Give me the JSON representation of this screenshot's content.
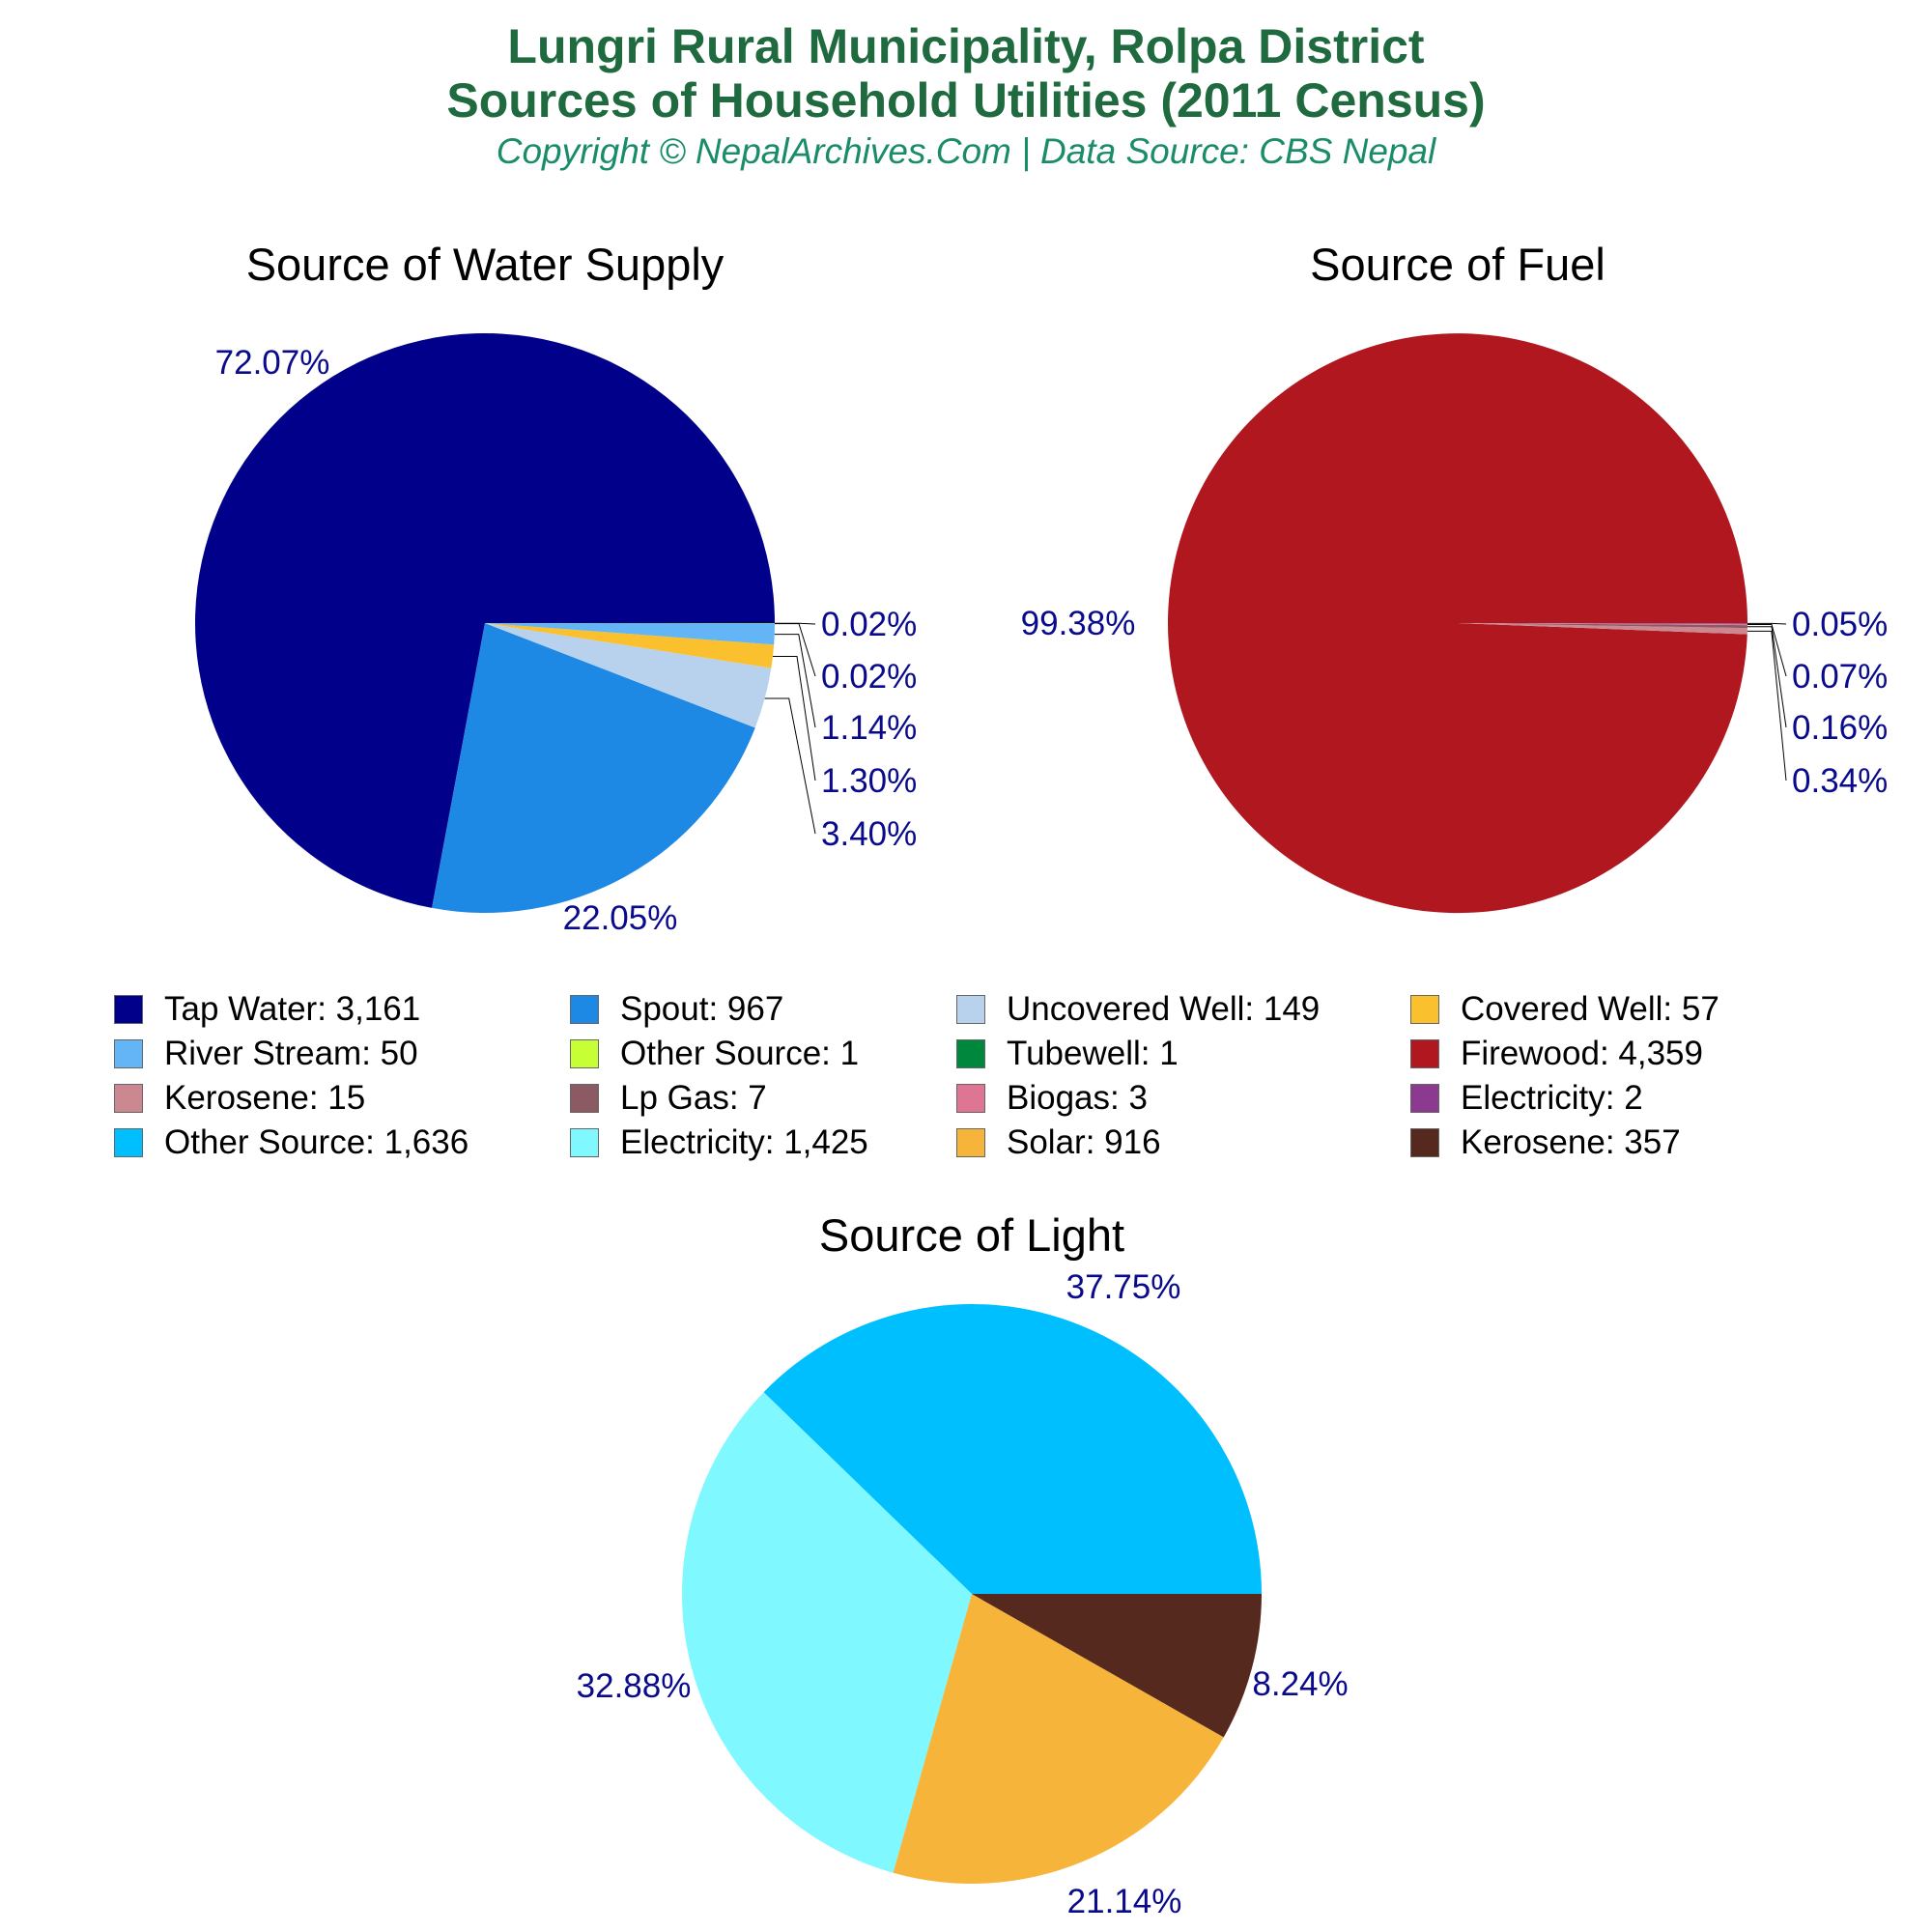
{
  "header": {
    "title_line1": "Lungri Rural Municipality, Rolpa District",
    "title_line2": "Sources of Household Utilities (2011 Census)",
    "subtitle": "Copyright © NepalArchives.Com | Data Source: CBS Nepal"
  },
  "chart_data": [
    {
      "type": "pie",
      "title": "Source of Water Supply",
      "slices": [
        {
          "label": "Tap Water",
          "value": 3161,
          "percent_label": "72.07%",
          "color": "#00008b"
        },
        {
          "label": "Spout",
          "value": 967,
          "percent_label": "22.05%",
          "color": "#1e88e5"
        },
        {
          "label": "Uncovered Well",
          "value": 149,
          "percent_label": "3.40%",
          "color": "#b8d2ee"
        },
        {
          "label": "Covered Well",
          "value": 57,
          "percent_label": "1.30%",
          "color": "#fbc02d"
        },
        {
          "label": "River Stream",
          "value": 50,
          "percent_label": "1.14%",
          "color": "#64b5f6"
        },
        {
          "label": "Other Source",
          "value": 1,
          "percent_label": "0.02%",
          "color": "#c6ff33"
        },
        {
          "label": "Tubewell",
          "value": 1,
          "percent_label": "0.02%",
          "color": "#00873e"
        }
      ]
    },
    {
      "type": "pie",
      "title": "Source of Fuel",
      "slices": [
        {
          "label": "Firewood",
          "value": 4359,
          "percent_label": "99.38%",
          "color": "#b0171f"
        },
        {
          "label": "Kerosene",
          "value": 15,
          "percent_label": "0.34%",
          "color": "#cc8890"
        },
        {
          "label": "Lp Gas",
          "value": 7,
          "percent_label": "0.16%",
          "color": "#8b5a62"
        },
        {
          "label": "Biogas",
          "value": 3,
          "percent_label": "0.07%",
          "color": "#de7593"
        },
        {
          "label": "Electricity",
          "value": 2,
          "percent_label": "0.05%",
          "color": "#8b3a8f"
        }
      ]
    },
    {
      "type": "pie",
      "title": "Source of Light",
      "slices": [
        {
          "label": "Other Source",
          "value": 1636,
          "percent_label": "37.75%",
          "color": "#00bfff"
        },
        {
          "label": "Electricity",
          "value": 1425,
          "percent_label": "32.88%",
          "color": "#7ff8ff"
        },
        {
          "label": "Solar",
          "value": 916,
          "percent_label": "21.14%",
          "color": "#f6b53a"
        },
        {
          "label": "Kerosene",
          "value": 357,
          "percent_label": "8.24%",
          "color": "#55291e"
        }
      ]
    }
  ],
  "legend": [
    {
      "text": "Tap Water: 3,161",
      "color": "#00008b"
    },
    {
      "text": "Spout: 967",
      "color": "#1e88e5"
    },
    {
      "text": "Uncovered Well: 149",
      "color": "#b8d2ee"
    },
    {
      "text": "Covered Well: 57",
      "color": "#fbc02d"
    },
    {
      "text": "River Stream: 50",
      "color": "#64b5f6"
    },
    {
      "text": "Other Source: 1",
      "color": "#c6ff33"
    },
    {
      "text": "Tubewell: 1",
      "color": "#00873e"
    },
    {
      "text": "Firewood: 4,359",
      "color": "#b0171f"
    },
    {
      "text": "Kerosene: 15",
      "color": "#cc8890"
    },
    {
      "text": "Lp Gas: 7",
      "color": "#8b5a62"
    },
    {
      "text": "Biogas: 3",
      "color": "#de7593"
    },
    {
      "text": "Electricity: 2",
      "color": "#8b3a8f"
    },
    {
      "text": "Other Source: 1,636",
      "color": "#00bfff"
    },
    {
      "text": "Electricity: 1,425",
      "color": "#7ff8ff"
    },
    {
      "text": "Solar: 916",
      "color": "#f6b53a"
    },
    {
      "text": "Kerosene: 357",
      "color": "#55291e"
    }
  ]
}
